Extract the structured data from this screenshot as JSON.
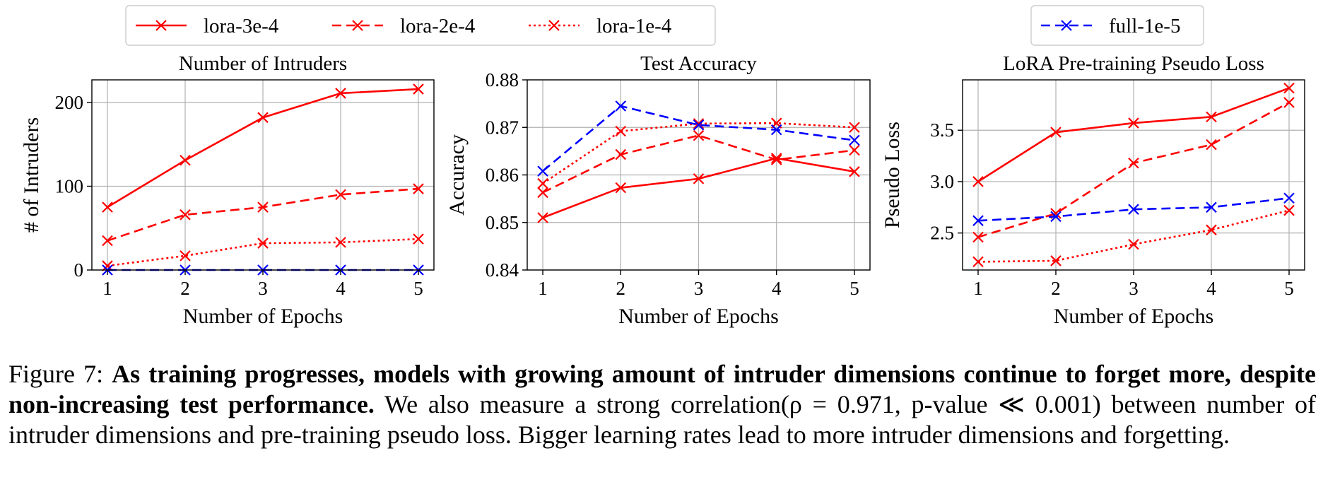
{
  "legend": {
    "groups": [
      [
        "lora-3e-4",
        "lora-2e-4",
        "lora-1e-4"
      ],
      [
        "full-1e-5"
      ]
    ]
  },
  "styles": {
    "lora-3e-4": {
      "color": "#ff0000",
      "dash": "solid"
    },
    "lora-2e-4": {
      "color": "#ff0000",
      "dash": "dashed"
    },
    "lora-1e-4": {
      "color": "#ff0000",
      "dash": "dotted"
    },
    "full-1e-5": {
      "color": "#0000ff",
      "dash": "dashed"
    },
    "marker": "x"
  },
  "chart_data": [
    {
      "type": "line",
      "title": "Number of Intruders",
      "xlabel": "Number of Epochs",
      "ylabel": "# of Intruders",
      "x": [
        1,
        2,
        3,
        4,
        5
      ],
      "xlim": [
        0.8,
        5.2
      ],
      "ylim": [
        0,
        227
      ],
      "yticks": [
        0,
        100,
        200
      ],
      "ytick_labels": [
        "0",
        "100",
        "200"
      ],
      "grid": true,
      "series": [
        {
          "name": "lora-3e-4",
          "values": [
            75,
            131,
            182,
            211,
            216
          ]
        },
        {
          "name": "lora-2e-4",
          "values": [
            35,
            66,
            75,
            90,
            97
          ]
        },
        {
          "name": "lora-1e-4",
          "values": [
            5,
            17,
            32,
            33,
            37
          ]
        },
        {
          "name": "full-1e-5",
          "values": [
            0,
            0,
            0,
            0,
            0
          ]
        }
      ]
    },
    {
      "type": "line",
      "title": "Test Accuracy",
      "xlabel": "Number of Epochs",
      "ylabel": "Accuracy",
      "x": [
        1,
        2,
        3,
        4,
        5
      ],
      "xlim": [
        0.8,
        5.2
      ],
      "ylim": [
        0.84,
        0.88
      ],
      "yticks": [
        0.84,
        0.85,
        0.86,
        0.87,
        0.88
      ],
      "ytick_labels": [
        "0.84",
        "0.85",
        "0.86",
        "0.87",
        "0.88"
      ],
      "grid": true,
      "series": [
        {
          "name": "lora-3e-4",
          "values": [
            0.851,
            0.8573,
            0.8592,
            0.8635,
            0.8607
          ]
        },
        {
          "name": "lora-2e-4",
          "values": [
            0.8563,
            0.8643,
            0.8683,
            0.8632,
            0.8652
          ]
        },
        {
          "name": "lora-1e-4",
          "values": [
            0.8582,
            0.8692,
            0.8708,
            0.8709,
            0.87
          ]
        },
        {
          "name": "full-1e-5",
          "values": [
            0.8608,
            0.8745,
            0.8705,
            0.8695,
            0.8673
          ]
        }
      ]
    },
    {
      "type": "line",
      "title": "LoRA Pre-training Pseudo Loss",
      "xlabel": "Number of Epochs",
      "ylabel": "Pseudo Loss",
      "x": [
        1,
        2,
        3,
        4,
        5
      ],
      "xlim": [
        0.8,
        5.2
      ],
      "ylim": [
        2.14,
        3.99
      ],
      "yticks": [
        2.5,
        3.0,
        3.5
      ],
      "ytick_labels": [
        "2.5",
        "3.0",
        "3.5"
      ],
      "grid": true,
      "series": [
        {
          "name": "lora-3e-4",
          "values": [
            3.0,
            3.48,
            3.57,
            3.63,
            3.91
          ]
        },
        {
          "name": "lora-2e-4",
          "values": [
            2.46,
            2.69,
            3.18,
            3.36,
            3.77
          ]
        },
        {
          "name": "lora-1e-4",
          "values": [
            2.22,
            2.23,
            2.39,
            2.53,
            2.72
          ]
        },
        {
          "name": "full-1e-5",
          "values": [
            2.62,
            2.66,
            2.73,
            2.75,
            2.84
          ]
        }
      ]
    }
  ],
  "caption": {
    "label": "Figure 7:",
    "bold": "As training progresses, models with growing amount of intruder dimensions continue to forget more, despite non-increasing test performance.",
    "text": "We also measure a strong correlation(ρ = 0.971, p-value ≪ 0.001) between number of intruder dimensions and pre-training pseudo loss. Bigger learning rates lead to more intruder dimensions and forgetting."
  }
}
